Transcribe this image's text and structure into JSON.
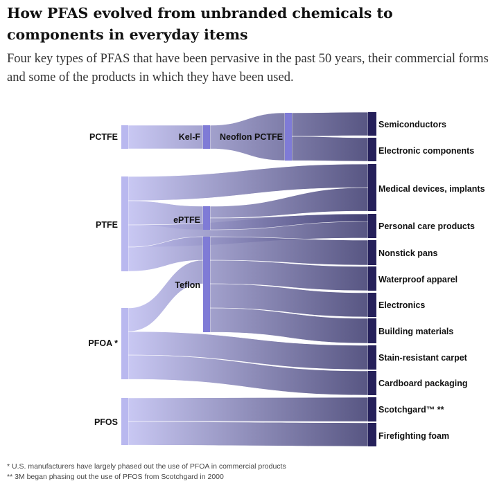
{
  "header": {
    "title": "How PFAS evolved from unbranded chemicals to components in everyday items",
    "subtitle": "Four key types of PFAS that have been pervasive in the past 50 years, their commercial forms and some of the products in which they have been used."
  },
  "diagram": {
    "type": "sankey",
    "colors": {
      "source": "#b9b8ef",
      "middle": "#7f7bd6",
      "product": "#25205a",
      "flow_start": "#c3c2f3",
      "flow_end": "#3f3d70"
    },
    "nodes": {
      "pctfe": "PCTFE",
      "ptfe": "PTFE",
      "pfoa": "PFOA *",
      "pfos": "PFOS",
      "kelf": "Kel-F",
      "eptfe": "ePTFE",
      "teflon": "Teflon",
      "neoflon": "Neoflon PCTFE",
      "semiconductors": "Semiconductors",
      "electronic_components": "Electronic components",
      "medical": "Medical devices, implants",
      "personal_care": "Personal care products",
      "nonstick": "Nonstick pans",
      "waterproof": "Waterproof apparel",
      "electronics": "Electronics",
      "building": "Building materials",
      "stain_carpet": "Stain-resistant carpet",
      "cardboard": "Cardboard packaging",
      "scotchgard": "Scotchgard™ **",
      "firefighting": "Firefighting foam"
    },
    "links": [
      {
        "from": "pctfe",
        "to": "kelf"
      },
      {
        "from": "kelf",
        "to": "neoflon"
      },
      {
        "from": "neoflon",
        "to": "semiconductors"
      },
      {
        "from": "neoflon",
        "to": "electronic_components"
      },
      {
        "from": "ptfe",
        "to": "medical"
      },
      {
        "from": "ptfe",
        "to": "eptfe"
      },
      {
        "from": "ptfe",
        "to": "personal_care"
      },
      {
        "from": "ptfe",
        "to": "teflon"
      },
      {
        "from": "eptfe",
        "to": "medical"
      },
      {
        "from": "eptfe",
        "to": "personal_care"
      },
      {
        "from": "pfoa",
        "to": "teflon"
      },
      {
        "from": "pfoa",
        "to": "stain_carpet"
      },
      {
        "from": "pfoa",
        "to": "cardboard"
      },
      {
        "from": "teflon",
        "to": "nonstick"
      },
      {
        "from": "teflon",
        "to": "waterproof"
      },
      {
        "from": "teflon",
        "to": "electronics"
      },
      {
        "from": "teflon",
        "to": "building"
      },
      {
        "from": "pfos",
        "to": "scotchgard"
      },
      {
        "from": "pfos",
        "to": "firefighting"
      }
    ]
  },
  "footnotes": {
    "note1": "* U.S. manufacturers have largely phased out the use of PFOA in commercial products",
    "note2": "** 3M began phasing out the use of PFOS from Scotchgard in 2000"
  }
}
